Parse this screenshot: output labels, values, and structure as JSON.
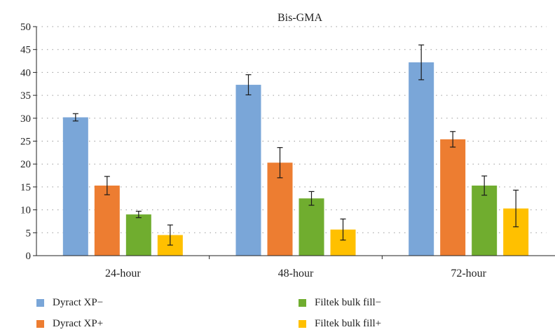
{
  "chart_data": {
    "type": "bar",
    "title": "Bis-GMA",
    "xlabel": "",
    "ylabel": "",
    "categories": [
      "24-hour",
      "48-hour",
      "72-hour"
    ],
    "ylim": [
      0,
      50
    ],
    "yticks": [
      0,
      5,
      10,
      15,
      20,
      25,
      30,
      35,
      40,
      45,
      50
    ],
    "grid": "dotted horizontal",
    "legend_position": "bottom",
    "series": [
      {
        "name": "Dyract XP−",
        "color": "#7aa6d8",
        "values": [
          30.2,
          37.3,
          42.2
        ],
        "errors": [
          0.8,
          2.2,
          3.8
        ]
      },
      {
        "name": "Dyract XP+",
        "color": "#ed7d31",
        "values": [
          15.3,
          20.3,
          25.4
        ],
        "errors": [
          2.0,
          3.3,
          1.7
        ]
      },
      {
        "name": "Filtek bulk fill−",
        "color": "#70ad2f",
        "values": [
          9.0,
          12.5,
          15.3
        ],
        "errors": [
          0.7,
          1.5,
          2.1
        ]
      },
      {
        "name": "Filtek bulk fill+",
        "color": "#ffc000",
        "values": [
          4.5,
          5.7,
          10.3
        ],
        "errors": [
          2.2,
          2.3,
          4.0
        ]
      }
    ]
  }
}
